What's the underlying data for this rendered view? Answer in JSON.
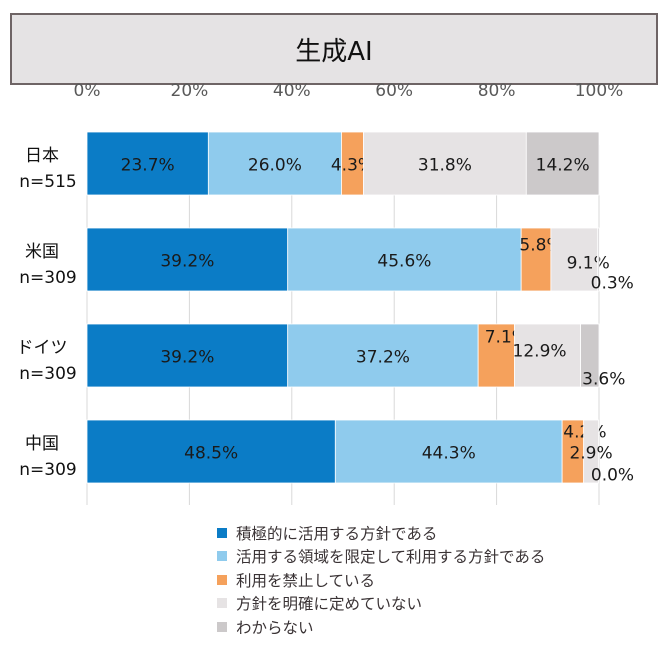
{
  "chart_data": {
    "type": "bar",
    "orientation": "horizontal",
    "stacked": true,
    "title": "生成AI",
    "xlim": [
      0,
      100
    ],
    "x_ticks": [
      "0%",
      "20%",
      "40%",
      "60%",
      "80%",
      "100%"
    ],
    "grid": true,
    "legend_position": "bottom",
    "categories": [
      {
        "name": "日本",
        "n": "n=515"
      },
      {
        "name": "米国",
        "n": "n=309"
      },
      {
        "name": "ドイツ",
        "n": "n=309"
      },
      {
        "name": "中国",
        "n": "n=309"
      }
    ],
    "series": [
      {
        "name": "積極的に活用する方針である",
        "color": "#0b7cc6",
        "values": [
          23.7,
          39.2,
          39.2,
          48.5
        ]
      },
      {
        "name": "活用する領域を限定して利用する方針である",
        "color": "#8fcbed",
        "values": [
          26.0,
          45.6,
          37.2,
          44.3
        ]
      },
      {
        "name": "利用を禁止している",
        "color": "#f5a15c",
        "values": [
          4.3,
          5.8,
          7.1,
          4.2
        ]
      },
      {
        "name": "方針を明確に定めていない",
        "color": "#e6e3e4",
        "values": [
          31.8,
          9.1,
          12.9,
          2.9
        ]
      },
      {
        "name": "わからない",
        "color": "#ccc9ca",
        "values": [
          14.2,
          0.3,
          3.6,
          0.0
        ]
      }
    ]
  }
}
